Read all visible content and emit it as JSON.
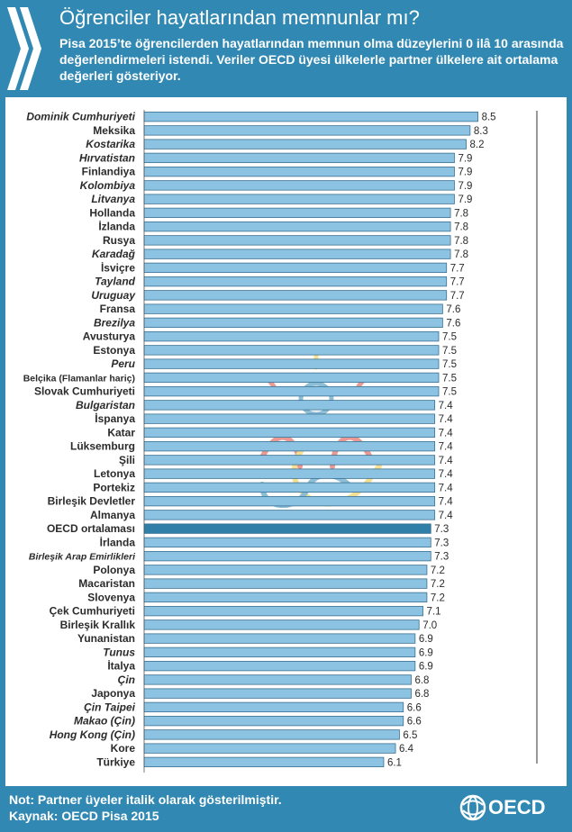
{
  "header": {
    "title": "Öğrenciler hayatlarından memnunlar mı?",
    "subtitle": "Pisa 2015’te öğrencilerden hayatlarından memnun olma düzeylerini 0 ilâ 10 arasında değerlendirmeleri istendi. Veriler OECD üyesi ülkelerle partner ülkelere ait ortalama değerleri gösteriyor."
  },
  "footer": {
    "note": "Not: Partner üyeler italik olarak gösterilmiştir.",
    "source": "Kaynak: OECD Pisa 2015",
    "logo_text": "OECD"
  },
  "colors": {
    "background": "#3189b3",
    "bar": "#8cc3e2",
    "bar_stroke": "#3a6f90",
    "bar_highlight": "#2f7fa8",
    "text": "#2b2b2b"
  },
  "chart_data": {
    "type": "bar",
    "orientation": "horizontal",
    "xlim": [
      0,
      10
    ],
    "x_ticks": [
      0,
      10
    ],
    "grid": false,
    "highlight_category": "OECD ortalaması",
    "italic_categories": [
      "Dominik Cumhuriyeti",
      "Kostarika",
      "Hırvatistan",
      "Kolombiya",
      "Litvanya",
      "Karadağ",
      "Tayland",
      "Uruguay",
      "Brezilya",
      "Peru",
      "Bulgaristan",
      "Birleşik Arap Emirlikleri",
      "Tunus",
      "Çin",
      "Çin Taipei",
      "Makao (Çin)",
      "Hong Kong (Çin)"
    ],
    "categories": [
      "Dominik Cumhuriyeti",
      "Meksika",
      "Kostarika",
      "Hırvatistan",
      "Finlandiya",
      "Kolombiya",
      "Litvanya",
      "Hollanda",
      "İzlanda",
      "Rusya",
      "Karadağ",
      "İsviçre",
      "Tayland",
      "Uruguay",
      "Fransa",
      "Brezilya",
      "Avusturya",
      "Estonya",
      "Peru",
      "Belçika (Flamanlar hariç)",
      "Slovak Cumhuriyeti",
      "Bulgaristan",
      "İspanya",
      "Katar",
      "Lüksemburg",
      "Şili",
      "Letonya",
      "Portekiz",
      "Birleşik Devletler",
      "Almanya",
      "OECD ortalaması",
      "İrlanda",
      "Birleşik Arap Emirlikleri",
      "Polonya",
      "Macaristan",
      "Slovenya",
      "Çek Cumhuriyeti",
      "Birleşik Krallık",
      "Yunanistan",
      "Tunus",
      "İtalya",
      "Çin",
      "Japonya",
      "Çin Taipei",
      "Makao (Çin)",
      "Hong Kong (Çin)",
      "Kore",
      "Türkiye"
    ],
    "values": [
      8.5,
      8.3,
      8.2,
      7.9,
      7.9,
      7.9,
      7.9,
      7.8,
      7.8,
      7.8,
      7.8,
      7.7,
      7.7,
      7.7,
      7.6,
      7.6,
      7.5,
      7.5,
      7.5,
      7.5,
      7.5,
      7.4,
      7.4,
      7.4,
      7.4,
      7.4,
      7.4,
      7.4,
      7.4,
      7.4,
      7.3,
      7.3,
      7.3,
      7.2,
      7.2,
      7.2,
      7.1,
      7.0,
      6.9,
      6.9,
      6.9,
      6.8,
      6.8,
      6.6,
      6.6,
      6.5,
      6.4,
      6.1
    ]
  }
}
